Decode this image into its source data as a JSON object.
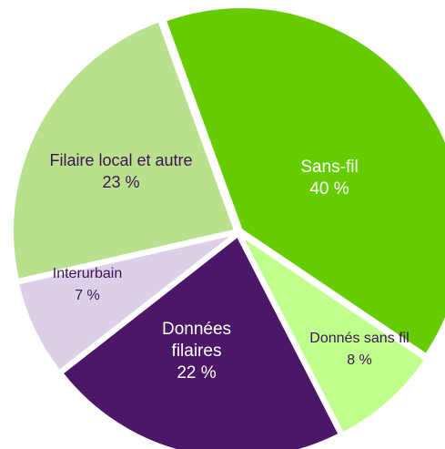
{
  "chart_data": {
    "type": "pie",
    "categories": [
      "Sans-fil",
      "Donnés sans fil",
      "Données filaires",
      "Interurbain",
      "Filaire local et autre"
    ],
    "values": [
      40,
      8,
      22,
      7,
      23
    ],
    "value_labels": [
      "40 %",
      "8 %",
      "22 %",
      "7 %",
      "23 %"
    ],
    "colors": [
      "#66cc00",
      "#bfff8c",
      "#4b1766",
      "#dccfe8",
      "#b9e08c"
    ]
  }
}
